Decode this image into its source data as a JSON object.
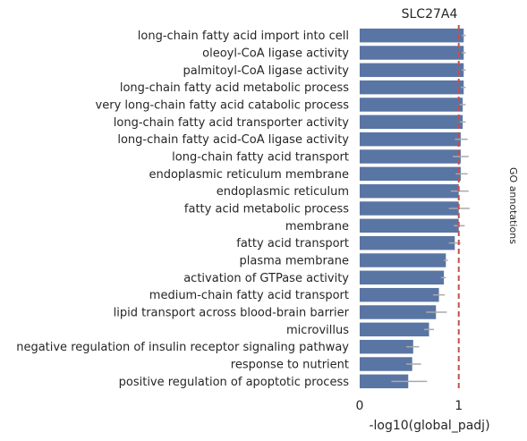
{
  "chart_data": {
    "type": "bar",
    "orientation": "horizontal",
    "title": "SLC27A4",
    "xlabel": "-log10(global_padj)",
    "side_label": "GO annotations",
    "xlim": [
      0,
      1.4
    ],
    "xticks": [
      0,
      1
    ],
    "xtick_labels": [
      "0",
      "1"
    ],
    "reference_line": {
      "x": 1.0,
      "style": "dashed",
      "color": "#c44e52"
    },
    "bar_color": "#5975a4",
    "error_color": "#aaaaaa",
    "grid": false,
    "categories": [
      "long-chain fatty acid import into cell",
      "oleoyl-CoA ligase activity",
      "palmitoyl-CoA ligase activity",
      "long-chain fatty acid metabolic process",
      "very long-chain fatty acid catabolic process",
      "long-chain fatty acid transporter activity",
      "long-chain fatty acid-CoA ligase activity",
      "long-chain fatty acid transport",
      "endoplasmic reticulum membrane",
      "endoplasmic reticulum",
      "fatty acid metabolic process",
      "membrane",
      "fatty acid transport",
      "plasma membrane",
      "activation of GTPase activity",
      "medium-chain fatty acid transport",
      "lipid transport across blood-brain barrier",
      "microvillus",
      "negative regulation of insulin receptor signaling pathway",
      "response to nutrient",
      "positive regulation of apoptotic process"
    ],
    "values": [
      1.05,
      1.05,
      1.05,
      1.05,
      1.04,
      1.04,
      1.02,
      1.02,
      1.02,
      1.0,
      1.0,
      1.0,
      0.96,
      0.87,
      0.85,
      0.8,
      0.77,
      0.7,
      0.54,
      0.53,
      0.49
    ],
    "error_low": [
      1.03,
      1.03,
      1.03,
      1.02,
      1.01,
      1.01,
      0.96,
      0.94,
      0.97,
      0.92,
      0.9,
      0.95,
      0.9,
      0.85,
      0.82,
      0.74,
      0.67,
      0.65,
      0.47,
      0.47,
      0.32
    ],
    "error_high": [
      1.07,
      1.07,
      1.07,
      1.07,
      1.07,
      1.07,
      1.09,
      1.1,
      1.09,
      1.1,
      1.11,
      1.06,
      1.02,
      0.89,
      0.87,
      0.86,
      0.88,
      0.75,
      0.6,
      0.62,
      0.68
    ]
  }
}
